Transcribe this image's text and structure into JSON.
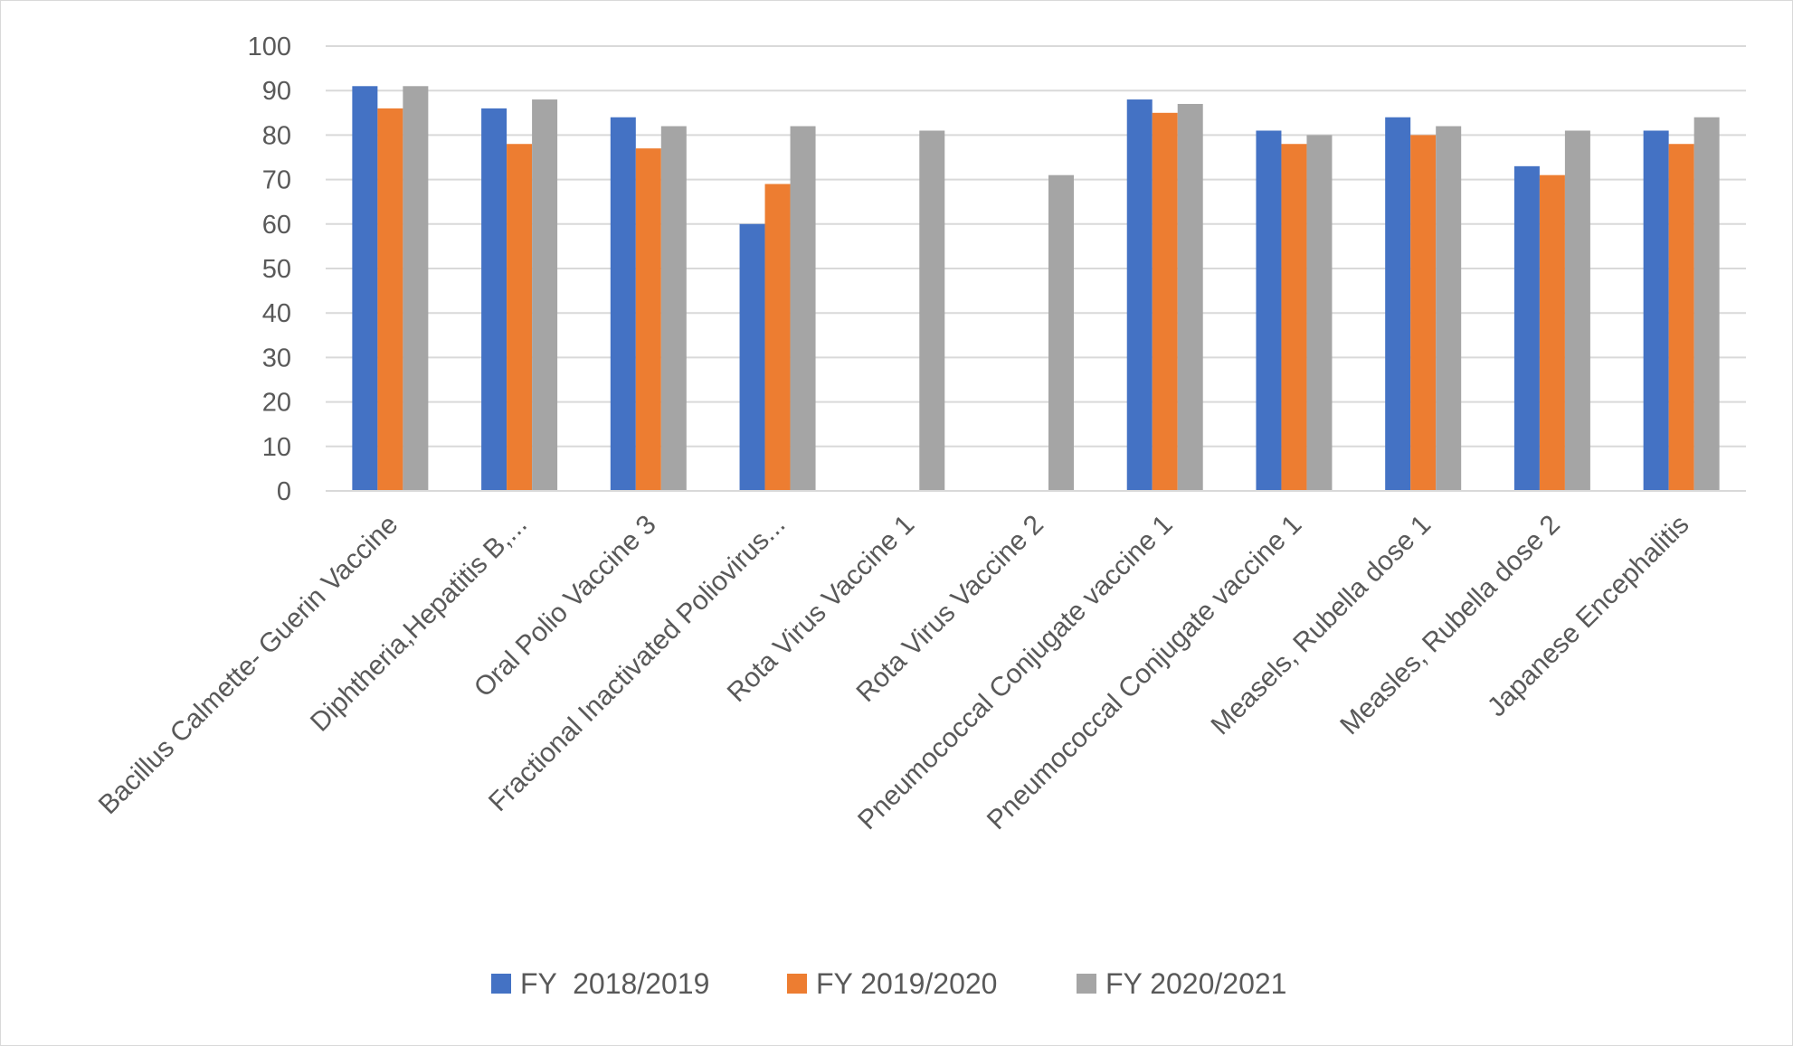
{
  "chart_data": {
    "type": "bar",
    "title": "",
    "xlabel": "",
    "ylabel": "",
    "ylim": [
      0,
      100
    ],
    "yticks": [
      0,
      10,
      20,
      30,
      40,
      50,
      60,
      70,
      80,
      90,
      100
    ],
    "grid": true,
    "legend_position": "bottom",
    "categories": [
      "Bacillus Calmette- Guerin Vaccine",
      "Diphtheria,Hepatitis B,...",
      "Oral Polio Vaccine 3",
      "Fractional Inactivated Poliovirus...",
      "Rota Virus Vaccine 1",
      "Rota Virus Vaccine 2",
      "Pneumococcal Conjugate vaccine 1",
      "Pneumococcal Conjugate vaccine 1",
      "Measels, Rubella dose 1",
      "Measles, Rubella dose 2",
      "Japanese Encephalitis"
    ],
    "series": [
      {
        "name": "FY  2018/2019",
        "color": "#4472c4",
        "values": [
          91,
          86,
          84,
          60,
          null,
          null,
          88,
          81,
          84,
          73,
          81
        ]
      },
      {
        "name": "FY 2019/2020",
        "color": "#ed7d31",
        "values": [
          86,
          78,
          77,
          69,
          null,
          null,
          85,
          78,
          80,
          71,
          78
        ]
      },
      {
        "name": "FY 2020/2021",
        "color": "#a5a5a5",
        "values": [
          91,
          88,
          82,
          82,
          81,
          71,
          87,
          80,
          82,
          81,
          84
        ]
      }
    ]
  }
}
